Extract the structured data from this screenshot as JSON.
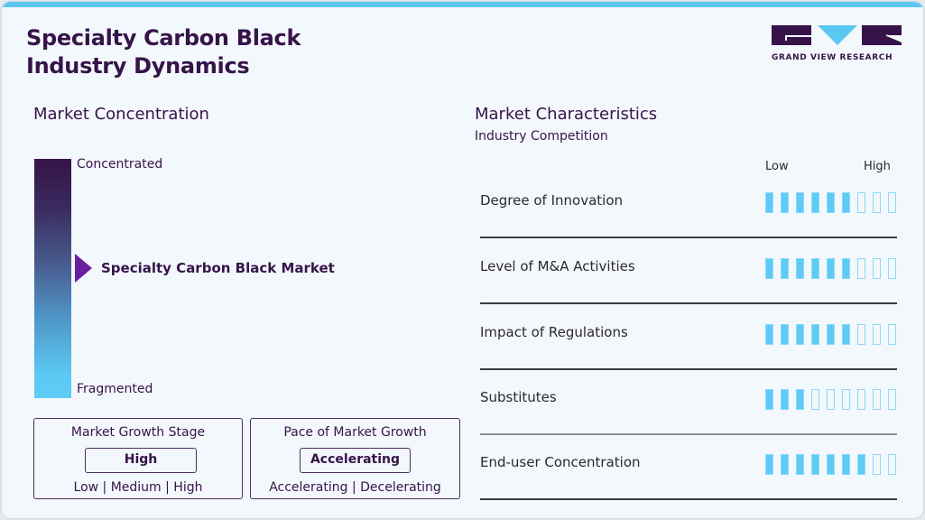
{
  "header": {
    "title_line1": "Specialty Carbon Black",
    "title_line2": "Industry Dynamics",
    "logo_text": "GRAND VIEW RESEARCH"
  },
  "colors": {
    "primary": "#361449",
    "accent": "#5bc8f1",
    "pointer": "#6a1fa0",
    "background": "#f3f8fc"
  },
  "concentration": {
    "title": "Market Concentration",
    "top_label": "Concentrated",
    "bottom_label": "Fragmented",
    "market_label": "Specialty Carbon Black Market",
    "pointer_position_pct": 45
  },
  "growth_stage": {
    "title": "Market Growth Stage",
    "value": "High",
    "options": "Low | Medium | High"
  },
  "growth_pace": {
    "title": "Pace of Market Growth",
    "value": "Accelerating",
    "options": "Accelerating | Decelerating"
  },
  "characteristics": {
    "title": "Market Characteristics",
    "subtitle": "Industry Competition",
    "scale_low": "Low",
    "scale_high": "High",
    "max_segments": 9,
    "rows": [
      {
        "label": "Degree of Innovation",
        "filled": 6
      },
      {
        "label": "Level of M&A Activities",
        "filled": 6
      },
      {
        "label": "Impact of Regulations",
        "filled": 6
      },
      {
        "label": "Substitutes",
        "filled": 3
      },
      {
        "label": "End-user Concentration",
        "filled": 7
      }
    ]
  },
  "chart_data": {
    "type": "table",
    "title": "Specialty Carbon Black Industry Dynamics",
    "scale": [
      0,
      9
    ],
    "categories": [
      "Degree of Innovation",
      "Level of M&A Activities",
      "Impact of Regulations",
      "Substitutes",
      "End-user Concentration"
    ],
    "values": [
      6,
      6,
      6,
      3,
      7
    ],
    "market_concentration": "Moderate (between Concentrated and Fragmented)",
    "market_growth_stage": "High",
    "pace_of_market_growth": "Accelerating"
  }
}
